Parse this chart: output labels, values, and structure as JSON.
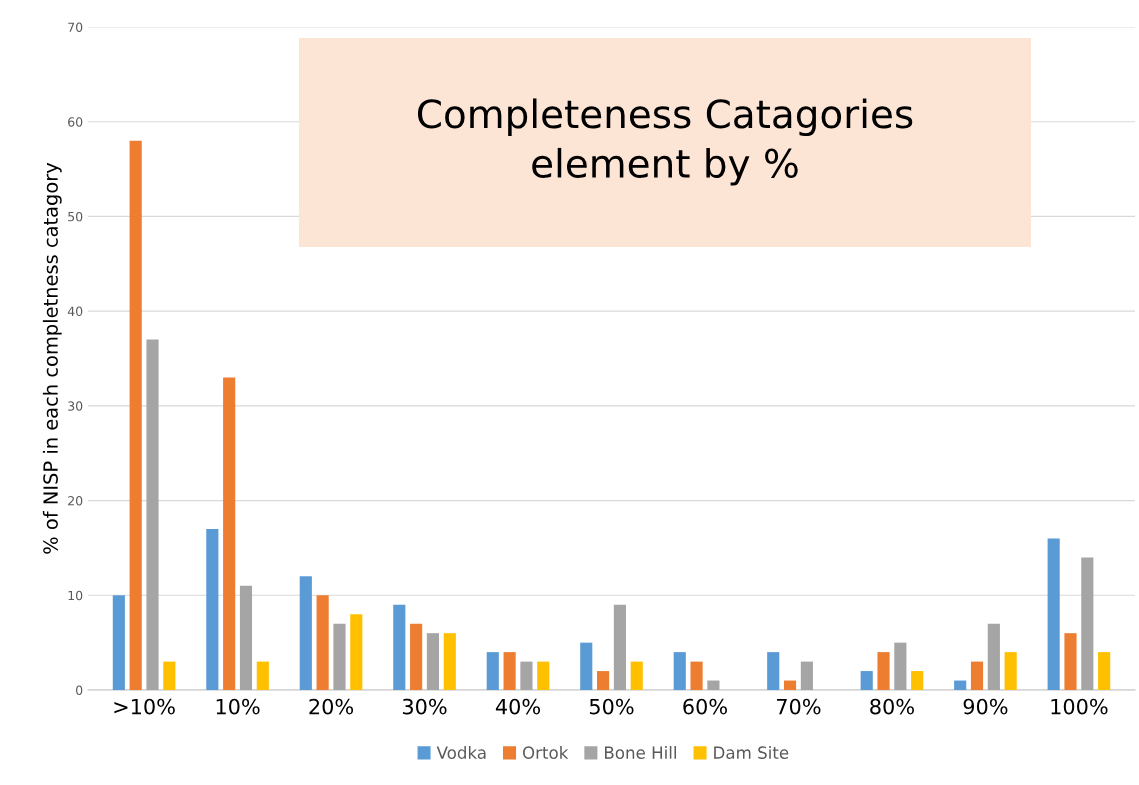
{
  "chart_data": {
    "type": "bar",
    "title": "Completeness Catagories\nelement by %",
    "ylabel": "% of NISP in each completness catagory",
    "categories": [
      ">10%",
      "10%",
      "20%",
      "30%",
      "40%",
      "50%",
      "60%",
      "70%",
      "80%",
      "90%",
      "100%"
    ],
    "series": [
      {
        "name": "Vodka",
        "color": "#5b9bd5",
        "values": [
          10,
          17,
          12,
          9,
          4,
          5,
          4,
          4,
          2,
          1,
          16
        ]
      },
      {
        "name": "Ortok",
        "color": "#ed7d31",
        "values": [
          58,
          33,
          10,
          7,
          4,
          2,
          3,
          1,
          4,
          3,
          6
        ]
      },
      {
        "name": "Bone Hill",
        "color": "#a5a5a5",
        "values": [
          37,
          11,
          7,
          6,
          3,
          9,
          1,
          3,
          5,
          7,
          14
        ]
      },
      {
        "name": "Dam Site",
        "color": "#ffc000",
        "values": [
          3,
          3,
          8,
          6,
          3,
          3,
          0,
          0,
          2,
          4,
          4
        ]
      }
    ],
    "ylim": [
      0,
      70
    ],
    "yticks": [
      0,
      10,
      20,
      30,
      40,
      50,
      60,
      70
    ],
    "grid": "y",
    "legend": "bottom"
  }
}
